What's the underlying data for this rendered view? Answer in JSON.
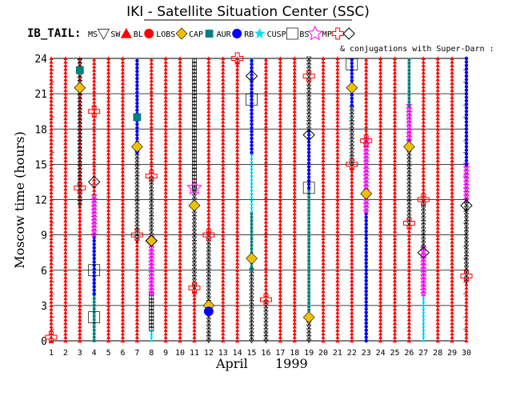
{
  "chart_data": {
    "type": "scatter",
    "title": "IKI - Satellite Situation Center (SSC)",
    "subtitle": "& conjugations with Super-Darn :",
    "series_label": "IB_TAIL:",
    "xlabel_month": "April",
    "xlabel_year": "1999",
    "ylabel": "Moscow time (hours)",
    "xlim": [
      1,
      30
    ],
    "ylim": [
      0,
      24
    ],
    "x_ticks": [
      1,
      2,
      3,
      4,
      5,
      6,
      7,
      8,
      9,
      10,
      11,
      12,
      13,
      14,
      15,
      16,
      17,
      18,
      19,
      20,
      21,
      22,
      23,
      24,
      25,
      26,
      27,
      28,
      29,
      30
    ],
    "y_ticks": [
      0,
      3,
      6,
      9,
      12,
      15,
      18,
      21,
      24
    ],
    "legend": [
      {
        "key": "MS",
        "label": "MS",
        "symbol": "triangle-down",
        "color": "#000000"
      },
      {
        "key": "SW",
        "label": "SW",
        "symbol": "triangle-up",
        "color": "#ff0000"
      },
      {
        "key": "BL",
        "label": "BL",
        "symbol": "circle",
        "color": "#ff0000"
      },
      {
        "key": "LOBS",
        "label": "LOBS",
        "symbol": "diamond-filled",
        "color": "#f0c000"
      },
      {
        "key": "CAP",
        "label": "CAP",
        "symbol": "square-small",
        "color": "#008080"
      },
      {
        "key": "AUR",
        "label": "AUR",
        "symbol": "circle",
        "color": "#0000ff"
      },
      {
        "key": "RB",
        "label": "RB",
        "symbol": "star",
        "color": "#00e0ff"
      },
      {
        "key": "CUSP",
        "label": "CUSP",
        "symbol": "square-open",
        "color": "#000000"
      },
      {
        "key": "BS",
        "label": "BS",
        "symbol": "star-open",
        "color": "#ff00ff"
      },
      {
        "key": "MP",
        "label": "MP",
        "symbol": "cross",
        "color": "#ff0000"
      },
      {
        "key": "SD",
        "label": "",
        "symbol": "diamond-open",
        "color": "#000000"
      }
    ],
    "sw_days": [
      1,
      2,
      3,
      5,
      6,
      9,
      10,
      13,
      14,
      17,
      18,
      21,
      24,
      25,
      28,
      29
    ],
    "columns": [
      {
        "day": 3,
        "segments": [
          [
            0,
            11.5,
            "SW"
          ],
          [
            11.5,
            24,
            "MS"
          ]
        ],
        "extra": [
          [
            13,
            "MP"
          ],
          [
            21.5,
            "LOBS"
          ],
          [
            23,
            "CAP"
          ]
        ]
      },
      {
        "day": 4,
        "segments": [
          [
            0,
            4,
            "CAP"
          ],
          [
            4,
            9,
            "AUR"
          ],
          [
            9,
            12.5,
            "BS"
          ],
          [
            12.5,
            24,
            "SW"
          ]
        ],
        "extra": [
          [
            13.5,
            "SD"
          ],
          [
            19.5,
            "MP"
          ],
          [
            2,
            "CUSP"
          ],
          [
            6,
            "CUSP"
          ]
        ]
      },
      {
        "day": 7,
        "segments": [
          [
            0,
            8.5,
            "SW"
          ],
          [
            8.5,
            16,
            "MS"
          ],
          [
            16,
            24,
            "AUR"
          ]
        ],
        "extra": [
          [
            9,
            "MP"
          ],
          [
            16.5,
            "LOBS"
          ],
          [
            19,
            "CAP"
          ]
        ]
      },
      {
        "day": 8,
        "segments": [
          [
            0,
            1,
            "RB"
          ],
          [
            1,
            4,
            "CUSP"
          ],
          [
            4,
            9,
            "BS"
          ],
          [
            9,
            14,
            "MS"
          ],
          [
            14,
            24,
            "SW"
          ]
        ],
        "extra": [
          [
            8.5,
            "LOBS"
          ],
          [
            8.5,
            "SD"
          ],
          [
            14,
            "MP"
          ]
        ]
      },
      {
        "day": 11,
        "segments": [
          [
            0,
            4.5,
            "SW"
          ],
          [
            4.5,
            13,
            "MS"
          ],
          [
            13,
            24,
            "CUSP"
          ]
        ],
        "extra": [
          [
            4.5,
            "MP"
          ],
          [
            11.5,
            "LOBS"
          ],
          [
            13,
            "BS"
          ]
        ]
      },
      {
        "day": 12,
        "segments": [
          [
            0,
            3,
            "MS"
          ],
          [
            3,
            9,
            "MS"
          ],
          [
            9,
            24,
            "SW"
          ]
        ],
        "extra": [
          [
            3,
            "LOBS"
          ],
          [
            2.5,
            "AUR"
          ],
          [
            9,
            "MP"
          ]
        ]
      },
      {
        "day": 15,
        "segments": [
          [
            0,
            6,
            "MS"
          ],
          [
            6,
            11,
            "CAP"
          ],
          [
            11,
            16,
            "RB"
          ],
          [
            16,
            24,
            "AUR"
          ]
        ],
        "extra": [
          [
            7,
            "LOBS"
          ],
          [
            20.5,
            "CUSP"
          ],
          [
            22.5,
            "SD"
          ]
        ]
      },
      {
        "day": 16,
        "segments": [
          [
            0,
            3.5,
            "MS"
          ],
          [
            3.5,
            24,
            "SW"
          ]
        ],
        "extra": [
          [
            3.5,
            "MP"
          ]
        ]
      },
      {
        "day": 19,
        "segments": [
          [
            0,
            2,
            "MS"
          ],
          [
            2,
            13,
            "CAP"
          ],
          [
            13,
            18,
            "AUR"
          ],
          [
            18,
            24,
            "MS"
          ]
        ],
        "extra": [
          [
            2,
            "LOBS"
          ],
          [
            13,
            "CUSP"
          ],
          [
            17.5,
            "SD"
          ],
          [
            22.5,
            "MP"
          ]
        ]
      },
      {
        "day": 20,
        "segments": [
          [
            0,
            24,
            "SW"
          ]
        ],
        "extra": []
      },
      {
        "day": 22,
        "segments": [
          [
            0,
            15,
            "SW"
          ],
          [
            15,
            20,
            "MS"
          ],
          [
            20,
            24,
            "AUR"
          ]
        ],
        "extra": [
          [
            15,
            "MP"
          ],
          [
            21.5,
            "LOBS"
          ],
          [
            23.5,
            "CUSP"
          ]
        ]
      },
      {
        "day": 23,
        "segments": [
          [
            0,
            11,
            "AUR"
          ],
          [
            11,
            17,
            "BS"
          ],
          [
            17,
            24,
            "SW"
          ]
        ],
        "extra": [
          [
            12.5,
            "LOBS"
          ],
          [
            17,
            "MP"
          ]
        ]
      },
      {
        "day": 26,
        "segments": [
          [
            0,
            10,
            "SW"
          ],
          [
            10,
            17,
            "MS"
          ],
          [
            17,
            20,
            "BS"
          ],
          [
            20,
            24,
            "CAP"
          ]
        ],
        "extra": [
          [
            10,
            "MP"
          ],
          [
            16.5,
            "LOBS"
          ]
        ]
      },
      {
        "day": 27,
        "segments": [
          [
            0,
            4,
            "RB"
          ],
          [
            4,
            8,
            "BS"
          ],
          [
            8,
            12,
            "MS"
          ],
          [
            12,
            24,
            "SW"
          ]
        ],
        "extra": [
          [
            7.5,
            "SD"
          ],
          [
            12,
            "MP"
          ]
        ]
      },
      {
        "day": 30,
        "segments": [
          [
            0,
            5,
            "SW"
          ],
          [
            5,
            12,
            "MS"
          ],
          [
            12,
            15,
            "BS"
          ],
          [
            15,
            24,
            "AUR"
          ]
        ],
        "extra": [
          [
            5.5,
            "MP"
          ],
          [
            11.5,
            "SD"
          ]
        ]
      }
    ]
  }
}
